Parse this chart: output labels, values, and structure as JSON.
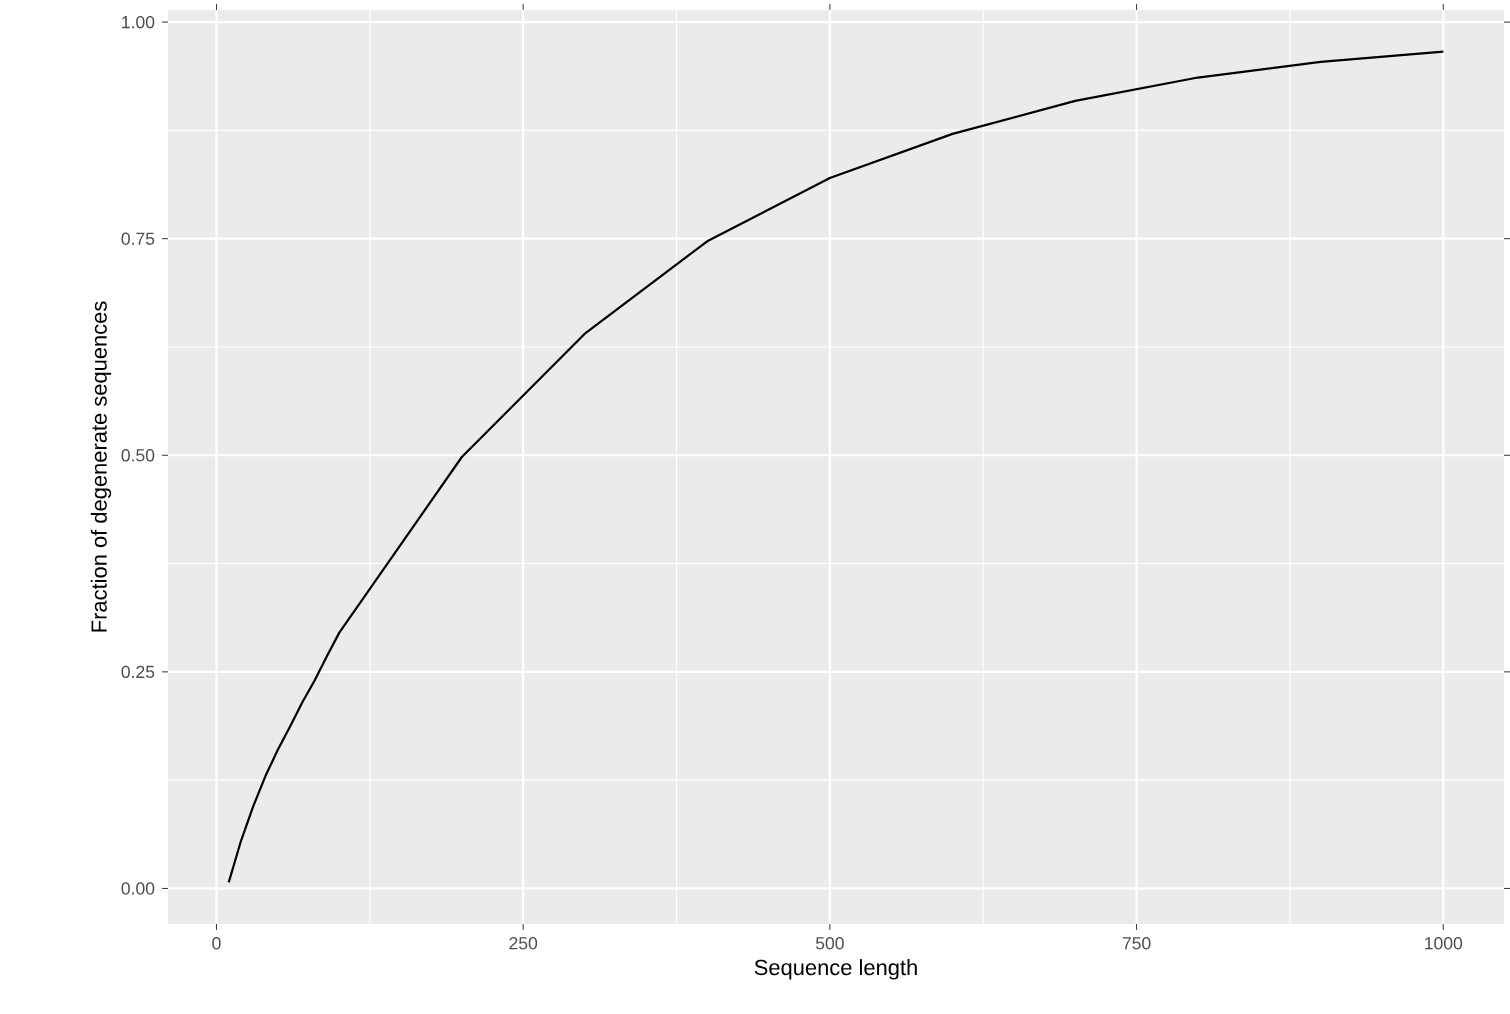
{
  "chart_data": {
    "type": "line",
    "xlabel": "Sequence length",
    "ylabel": "Fraction of degenerate sequences",
    "x": [
      10,
      20,
      30,
      40,
      50,
      60,
      70,
      80,
      90,
      100,
      200,
      300,
      400,
      500,
      600,
      700,
      800,
      900,
      1000
    ],
    "series": [
      {
        "color": "#000000",
        "values": [
          0.007,
          0.055,
          0.095,
          0.13,
          0.16,
          0.187,
          0.215,
          0.24,
          0.268,
          0.295,
          0.498,
          0.64,
          0.747,
          0.82,
          0.871,
          0.909,
          0.936,
          0.954,
          0.966
        ]
      }
    ],
    "xlim": [
      -39.5,
      1049.5
    ],
    "ylim": [
      -0.041,
      1.014
    ],
    "xticks": [
      0,
      250,
      500,
      750,
      1000
    ],
    "yticks": [
      {
        "value": 0,
        "label": "0.00"
      },
      {
        "value": 0.25,
        "label": "0.25"
      },
      {
        "value": 0.5,
        "label": "0.50"
      },
      {
        "value": 0.75,
        "label": "0.75"
      },
      {
        "value": 1,
        "label": "1.00"
      }
    ],
    "grid": true,
    "line_style": "solid"
  }
}
